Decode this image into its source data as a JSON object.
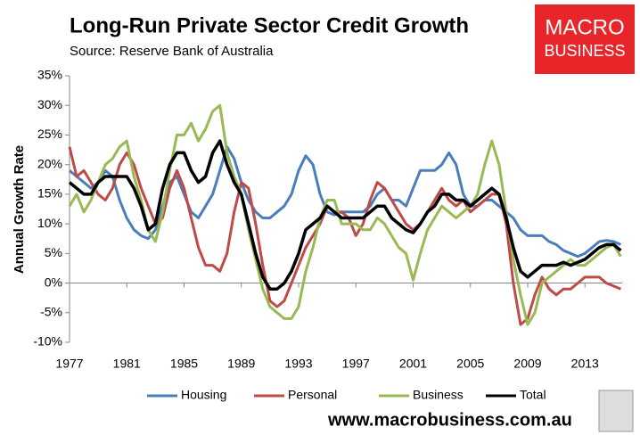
{
  "chart_data": {
    "type": "line",
    "title": "Long-Run Private Sector Credit Growth",
    "subtitle": "Source: Reserve Bank of Australia",
    "y_label": "Annual Growth Rate",
    "logo": [
      "MACRO",
      "BUSINESS"
    ],
    "footer": "www.macrobusiness.com.au",
    "x": [
      1977,
      1977.5,
      1978,
      1978.5,
      1979,
      1979.5,
      1980,
      1980.5,
      1981,
      1981.5,
      1982,
      1982.5,
      1983,
      1983.5,
      1984,
      1984.5,
      1985,
      1985.5,
      1986,
      1986.5,
      1987,
      1987.5,
      1988,
      1988.5,
      1989,
      1989.5,
      1990,
      1990.5,
      1991,
      1991.5,
      1992,
      1992.5,
      1993,
      1993.5,
      1994,
      1994.5,
      1995,
      1995.5,
      1996,
      1996.5,
      1997,
      1997.5,
      1998,
      1998.5,
      1999,
      1999.5,
      2000,
      2000.5,
      2001,
      2001.5,
      2002,
      2002.5,
      2003,
      2003.5,
      2004,
      2004.5,
      2005,
      2005.5,
      2006,
      2006.5,
      2007,
      2007.5,
      2008,
      2008.5,
      2009,
      2009.5,
      2010,
      2010.5,
      2011,
      2011.5,
      2012,
      2012.5,
      2013,
      2013.5,
      2014,
      2014.5,
      2015,
      2015.5
    ],
    "series": [
      {
        "name": "Housing",
        "color": "#4a7ebb",
        "values": [
          19,
          18,
          17,
          16,
          17,
          19,
          18,
          14,
          11,
          9,
          8,
          7.5,
          9,
          13,
          17,
          18,
          15,
          12,
          11,
          13,
          15,
          19,
          23,
          21,
          17,
          14,
          12,
          11,
          11,
          12,
          13,
          15,
          19,
          21.5,
          20,
          15,
          12,
          11.5,
          12,
          12,
          12,
          12,
          13,
          15,
          16,
          14,
          14,
          13,
          16,
          19,
          19,
          19,
          20,
          22,
          20,
          15,
          13,
          13,
          14,
          14,
          13,
          12,
          11,
          9,
          8,
          8,
          8,
          7,
          6.5,
          5.5,
          5,
          4.5,
          5,
          6,
          7,
          7.2,
          7,
          6.5
        ]
      },
      {
        "name": "Personal",
        "color": "#be4b48",
        "values": [
          23,
          18,
          19,
          17,
          15,
          14,
          16,
          20,
          22,
          20,
          16,
          13,
          10,
          11,
          16,
          19,
          16,
          11,
          6,
          3,
          3,
          2,
          5,
          12,
          17,
          16,
          10,
          3,
          -3,
          -4,
          -3,
          0,
          3,
          6,
          8,
          10,
          13,
          12,
          12,
          11,
          8,
          10,
          14,
          17,
          16,
          14,
          12,
          10,
          9,
          10,
          12,
          14,
          16,
          14,
          13,
          14,
          12,
          13,
          14,
          15,
          15,
          10,
          0,
          -7,
          -6,
          -2,
          1,
          -1,
          -2,
          -1,
          -1,
          0,
          1,
          1,
          1,
          0,
          -0.5,
          -1
        ]
      },
      {
        "name": "Business",
        "color": "#98b954",
        "values": [
          13,
          15,
          12,
          14,
          17,
          20,
          21,
          23,
          24,
          18,
          14,
          9,
          7,
          12,
          19,
          25,
          25,
          27,
          24,
          26,
          29,
          30,
          22,
          18,
          15,
          9,
          4,
          -1,
          -4,
          -5,
          -6,
          -6,
          -4,
          2,
          6,
          11,
          14,
          14,
          10,
          10,
          10,
          9,
          9,
          11,
          10,
          8,
          6,
          5,
          0.5,
          5,
          9,
          11,
          13,
          12,
          11,
          12,
          13,
          15,
          20,
          24,
          20,
          12,
          4,
          -2,
          -7,
          -5,
          0,
          1,
          2,
          3,
          4,
          3,
          3,
          4,
          5,
          6,
          6.5,
          4.5
        ]
      },
      {
        "name": "Total",
        "color": "#000000",
        "values": [
          17,
          16,
          15,
          15,
          17,
          18,
          18,
          18,
          18,
          16,
          13,
          9,
          10,
          16,
          20,
          22,
          22,
          19,
          17,
          18,
          22,
          24,
          20,
          17,
          15,
          10,
          5,
          1,
          -1,
          -1,
          0,
          2,
          5,
          9,
          10,
          11,
          13,
          12,
          11,
          11,
          11,
          11,
          12,
          13,
          13,
          11,
          10,
          9,
          8.5,
          10,
          12,
          13,
          15,
          15,
          14,
          14,
          13,
          14,
          15,
          16,
          15,
          11,
          6,
          2,
          1,
          2,
          3,
          3,
          3,
          3.5,
          3,
          3.5,
          4,
          5,
          6,
          6.5,
          6.5,
          5.5
        ]
      }
    ],
    "xlim": [
      1977,
      2015.6
    ],
    "xticks": [
      1977,
      1981,
      1985,
      1989,
      1993,
      1997,
      2001,
      2005,
      2009,
      2013
    ],
    "ylim": [
      -10,
      35
    ],
    "yticks": [
      {
        "value": -10,
        "label": "-10%"
      },
      {
        "value": -5,
        "label": "-5%"
      },
      {
        "value": 0,
        "label": "0%"
      },
      {
        "value": 5,
        "label": "5%"
      },
      {
        "value": 10,
        "label": "10%"
      },
      {
        "value": 15,
        "label": "15%"
      },
      {
        "value": 20,
        "label": "20%"
      },
      {
        "value": 25,
        "label": "25%"
      },
      {
        "value": 30,
        "label": "30%"
      },
      {
        "value": 35,
        "label": "35%"
      }
    ],
    "grid": false,
    "legend": "bottom"
  }
}
